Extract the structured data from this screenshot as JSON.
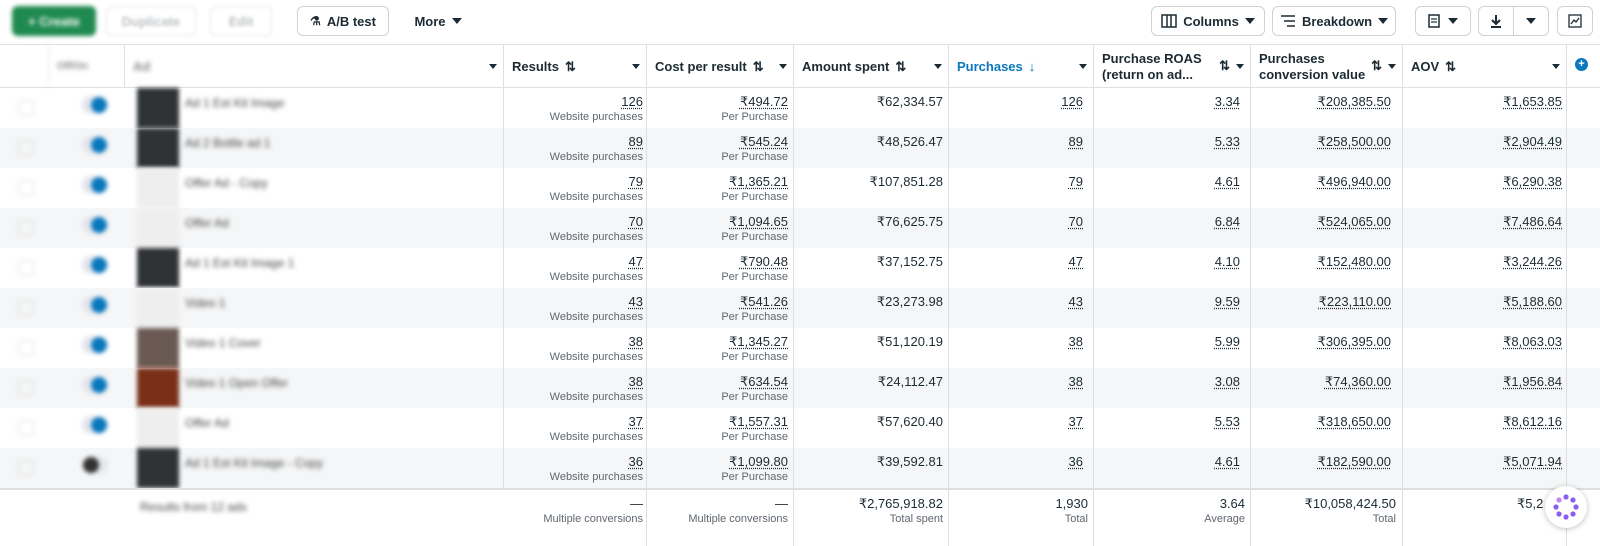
{
  "toolbar": {
    "create_label": "+ Create",
    "duplicate_label": "Duplicate",
    "edit_label": "Edit",
    "ab_test_label": "A/B test",
    "more_label": "More",
    "columns_label": "Columns",
    "breakdown_label": "Breakdown"
  },
  "columns": {
    "name": "Ad",
    "results": "Results",
    "cost_per_result": "Cost per result",
    "amount_spent": "Amount spent",
    "purchases": "Purchases",
    "roas_line1": "Purchase ROAS",
    "roas_line2": "(return on ad...",
    "conv_value_line1": "Purchases",
    "conv_value_line2": "conversion value",
    "aov": "AOV"
  },
  "rows": [
    {
      "name": "Ad 1 Ext Kit Image",
      "results": "126",
      "results_sub": "Website purchases",
      "cpr": "₹494.72",
      "cpr_sub": "Per Purchase",
      "spent": "₹62,334.57",
      "purchases": "126",
      "roas": "3.34",
      "conv_value": "₹208,385.50",
      "aov": "₹1,653.85",
      "thumb": "dark",
      "on": true
    },
    {
      "name": "Ad 2 Bottle ad 1",
      "results": "89",
      "results_sub": "Website purchases",
      "cpr": "₹545.24",
      "cpr_sub": "Per Purchase",
      "spent": "₹48,526.47",
      "purchases": "89",
      "roas": "5.33",
      "conv_value": "₹258,500.00",
      "aov": "₹2,904.49",
      "thumb": "dark",
      "on": true
    },
    {
      "name": "Offer Ad - Copy",
      "results": "79",
      "results_sub": "Website purchases",
      "cpr": "₹1,365.21",
      "cpr_sub": "Per Purchase",
      "spent": "₹107,851.28",
      "purchases": "79",
      "roas": "4.61",
      "conv_value": "₹496,940.00",
      "aov": "₹6,290.38",
      "thumb": "light",
      "on": true
    },
    {
      "name": "Offer Ad",
      "results": "70",
      "results_sub": "Website purchases",
      "cpr": "₹1,094.65",
      "cpr_sub": "Per Purchase",
      "spent": "₹76,625.75",
      "purchases": "70",
      "roas": "6.84",
      "conv_value": "₹524,065.00",
      "aov": "₹7,486.64",
      "thumb": "light",
      "on": true
    },
    {
      "name": "Ad 1 Ext Kit Image 1",
      "results": "47",
      "results_sub": "Website purchases",
      "cpr": "₹790.48",
      "cpr_sub": "Per Purchase",
      "spent": "₹37,152.75",
      "purchases": "47",
      "roas": "4.10",
      "conv_value": "₹152,480.00",
      "aov": "₹3,244.26",
      "thumb": "dark",
      "on": true
    },
    {
      "name": "Video 1",
      "results": "43",
      "results_sub": "Website purchases",
      "cpr": "₹541.26",
      "cpr_sub": "Per Purchase",
      "spent": "₹23,273.98",
      "purchases": "43",
      "roas": "9.59",
      "conv_value": "₹223,110.00",
      "aov": "₹5,188.60",
      "thumb": "light",
      "on": true
    },
    {
      "name": "Video 1 Cover",
      "results": "38",
      "results_sub": "Website purchases",
      "cpr": "₹1,345.27",
      "cpr_sub": "Per Purchase",
      "spent": "₹51,120.19",
      "purchases": "38",
      "roas": "5.99",
      "conv_value": "₹306,395.00",
      "aov": "₹8,063.03",
      "thumb": "photo",
      "on": true
    },
    {
      "name": "Video 1 Open Offer",
      "results": "38",
      "results_sub": "Website purchases",
      "cpr": "₹634.54",
      "cpr_sub": "Per Purchase",
      "spent": "₹24,112.47",
      "purchases": "38",
      "roas": "3.08",
      "conv_value": "₹74,360.00",
      "aov": "₹1,956.84",
      "thumb": "fire",
      "on": true
    },
    {
      "name": "Offer Ad",
      "results": "37",
      "results_sub": "Website purchases",
      "cpr": "₹1,557.31",
      "cpr_sub": "Per Purchase",
      "spent": "₹57,620.40",
      "purchases": "37",
      "roas": "5.53",
      "conv_value": "₹318,650.00",
      "aov": "₹8,612.16",
      "thumb": "light",
      "on": true
    },
    {
      "name": "Ad 1 Ext Kit Image - Copy",
      "results": "36",
      "results_sub": "Website purchases",
      "cpr": "₹1,099.80",
      "cpr_sub": "Per Purchase",
      "spent": "₹39,592.81",
      "purchases": "36",
      "roas": "4.61",
      "conv_value": "₹182,590.00",
      "aov": "₹5,071.94",
      "thumb": "dark",
      "on": false
    }
  ],
  "totals": {
    "label": "Results from 12 ads",
    "results": "—",
    "results_sub": "Multiple conversions",
    "cpr": "—",
    "cpr_sub": "Multiple conversions",
    "spent": "₹2,765,918.82",
    "spent_sub": "Total spent",
    "purchases": "1,930",
    "purchases_sub": "Total",
    "roas": "3.64",
    "roas_sub": "Average",
    "conv_value": "₹10,058,424.50",
    "conv_value_sub": "Total",
    "aov": "₹5,2"
  },
  "colors": {
    "accent": "#0a78be",
    "create": "#1f8a50"
  }
}
